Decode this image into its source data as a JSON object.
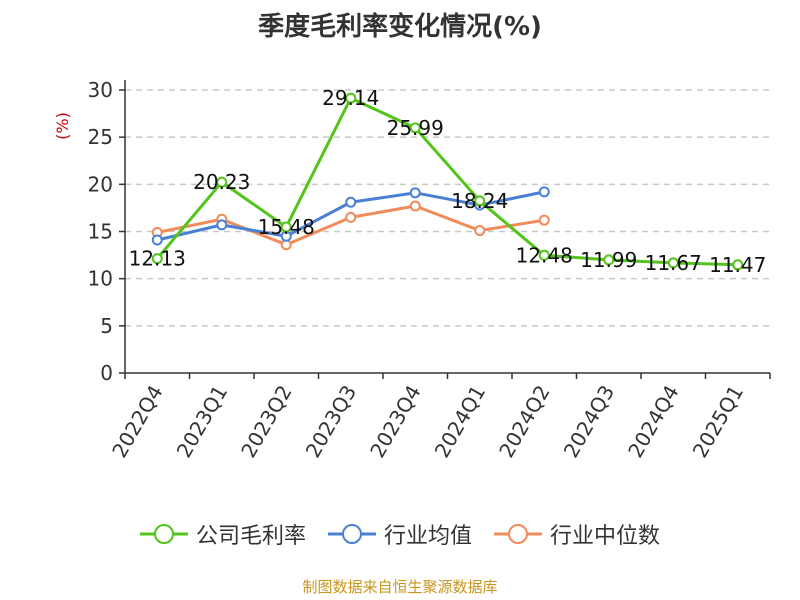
{
  "title": "季度毛利率变化情况(%)",
  "footer": "制图数据来自恒生聚源数据库",
  "chart_data": {
    "type": "line",
    "title": "季度毛利率变化情况(%)",
    "ylabel": "(%)",
    "xlabel": "",
    "categories": [
      "2022Q4",
      "2023Q1",
      "2023Q2",
      "2023Q3",
      "2023Q4",
      "2024Q1",
      "2024Q2",
      "2024Q3",
      "2024Q4",
      "2025Q1"
    ],
    "ylim": [
      0,
      30
    ],
    "yticks": [
      0,
      5,
      10,
      15,
      20,
      25,
      30
    ],
    "grid": true,
    "legend": "bottom",
    "series": [
      {
        "name": "公司毛利率",
        "color": "#52c41a",
        "show_labels": true,
        "values": [
          12.13,
          20.23,
          15.48,
          29.14,
          25.99,
          18.24,
          12.48,
          11.99,
          11.67,
          11.47
        ]
      },
      {
        "name": "行业均值",
        "color": "#4a7fd6",
        "show_labels": false,
        "values": [
          14.1,
          15.7,
          14.5,
          18.1,
          19.1,
          17.8,
          19.2,
          null,
          null,
          null
        ]
      },
      {
        "name": "行业中位数",
        "color": "#f28a5a",
        "show_labels": false,
        "values": [
          14.9,
          16.3,
          13.6,
          16.5,
          17.7,
          15.1,
          16.2,
          null,
          null,
          null
        ]
      }
    ]
  }
}
